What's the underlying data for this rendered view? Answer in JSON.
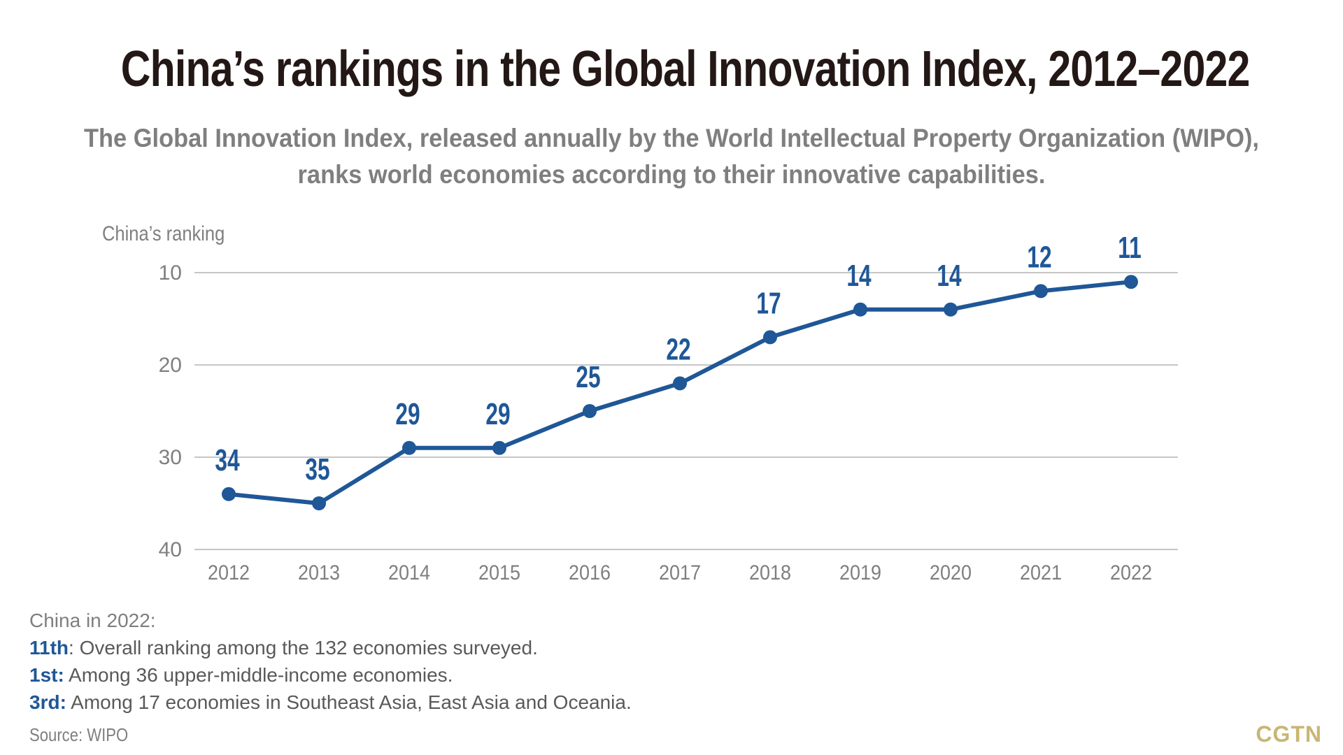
{
  "header": {
    "title": "China’s rankings in the Global Innovation Index, 2012–2022",
    "subtitle_line1": "The Global Innovation Index, released annually by the World Intellectual Property Organization (WIPO),",
    "subtitle_line2": "ranks world economies according to their innovative capabilities."
  },
  "chart_data": {
    "type": "line",
    "title": "China’s rankings in the Global Innovation Index, 2012–2022",
    "ylabel": "China’s ranking",
    "xlabel": "",
    "y_inverted": true,
    "ylim": [
      40,
      10
    ],
    "yticks": [
      "10",
      "20",
      "30",
      "40"
    ],
    "grid": true,
    "categories": [
      "2012",
      "2013",
      "2014",
      "2015",
      "2016",
      "2017",
      "2018",
      "2019",
      "2020",
      "2021",
      "2022"
    ],
    "series": [
      {
        "name": "China’s ranking",
        "values": [
          34,
          35,
          29,
          29,
          25,
          22,
          17,
          14,
          14,
          12,
          11
        ],
        "labels": [
          "34",
          "35",
          "29",
          "29",
          "25",
          "22",
          "17",
          "14",
          "14",
          "12",
          "11"
        ]
      }
    ]
  },
  "notes": {
    "heading": "China in 2022:",
    "items": [
      {
        "key": "11th",
        "text": ": Overall ranking among the 132 economies surveyed."
      },
      {
        "key": "1st:",
        "text": " Among 36 upper-middle-income economies."
      },
      {
        "key": "3rd:",
        "text": " Among 17 economies in Southeast Asia, East Asia and Oceania."
      }
    ]
  },
  "footer": {
    "source": "Source: WIPO",
    "brand": "CGTN"
  },
  "colors": {
    "line": "#1f5797",
    "label": "#1f5797",
    "grid": "#b3b3b3",
    "axis_text": "#7f7f7f",
    "brand": "#c9b673"
  }
}
